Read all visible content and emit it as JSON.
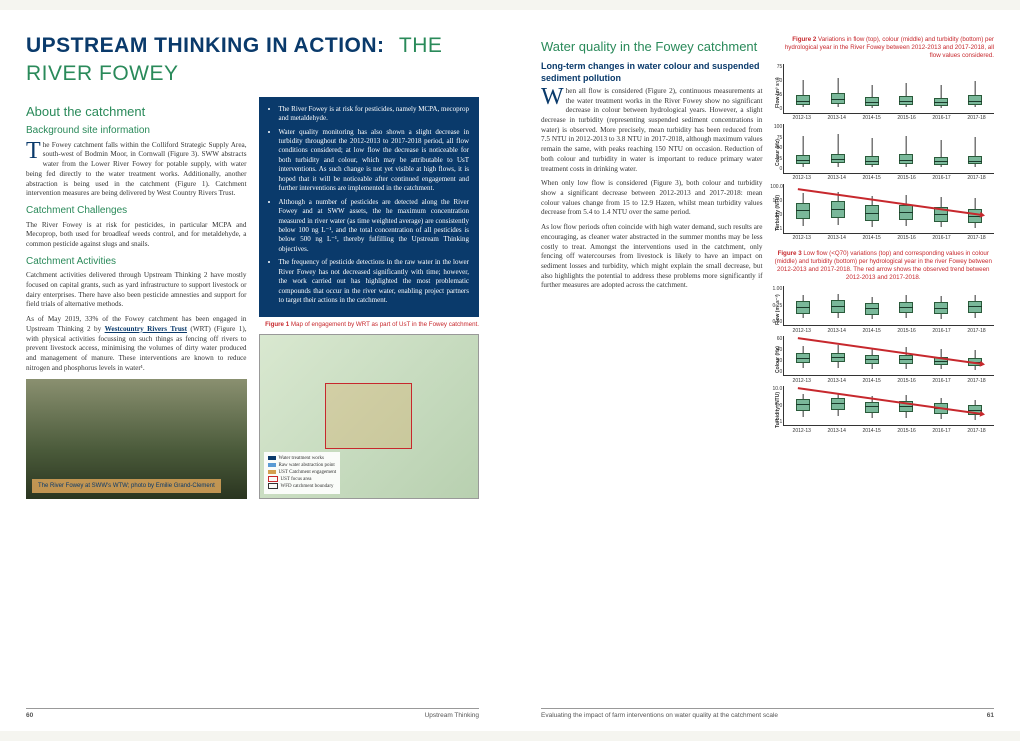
{
  "title_left": "UPSTREAM THINKING IN ACTION:",
  "title_right": "THE RIVER FOWEY",
  "left": {
    "h_about": "About the catchment",
    "h_bg": "Background site information",
    "p_bg": "The Fowey catchment falls within the Colliford Strategic Supply Area, south-west of Bodmin Moor, in Cornwall (Figure 3). SWW abstracts water from the Lower River Fowey for potable supply, with water being fed directly to the water treatment works. Additionally, another abstraction is being used in the catchment (Figure 1). Catchment intervention measures are being delivered by West Country Rivers Trust.",
    "h_chal": "Catchment Challenges",
    "p_chal": "The River Fowey is at risk for pesticides, in particular MCPA and Mecoprop, both used for broadleaf weeds control, and for metaldehyde, a common pesticide against slugs and snails.",
    "h_act": "Catchment Activities",
    "p_act1": "Catchment activities delivered through Upstream Thinking 2 have mostly focused on capital grants, such as yard infrastructure to support livestock or dairy enterprises. There have also been pesticide amnesties and support for field trials of alternative methods.",
    "p_act2": "As of May 2019, 33% of the Fowey catchment has been engaged in Upstream Thinking 2 by ",
    "link": "Westcountry Rivers Trust",
    "p_act3": " (WRT) (Figure 1), with physical activities focussing on such things as fencing off rivers to prevent livestock access, minimising the volumes of dirty water produced and management of manure. These interventions are known to reduce nitrogen and phosphorus levels in water¹.",
    "bullets": [
      "The River Fowey is at risk for pesticides, namely MCPA, mecoprop and metaldehyde.",
      "Water quality monitoring has also shown a slight decrease in turbidity throughout the 2012-2013 to 2017-2018 period, all flow conditions considered; at low flow the decrease is noticeable for both turbidity and colour, which may be attributable to UsT interventions. As such change is not yet visible at high flows, it is hoped that it will be noticeable after continued engagement and further interventions are implemented in the catchment.",
      "Although a number of pesticides are detected along the River Fowey and at SWW assets, the he maximum concentration measured in river water (as time weighted average) are consistently below 100 ng L⁻¹, and the total concentration of all pesticides is below 500 ng L⁻¹, thereby fulfilling the Upstream Thinking objectives.",
      "The frequency of pesticide detections in the raw water in the lower River Fowey has not decreased significantly with time; however, the work carried out has highlighted the most problematic compounds that occur in the river water, enabling project partners to target their actions in the catchment."
    ],
    "fig1_label": "Figure 1",
    "fig1_text": " Map of engagement by WRT as part of UsT in the Fowey catchment.",
    "map_legend": [
      "Water treatment works",
      "Raw water abstraction point",
      "UST Catchment engagement",
      "UST focus area",
      "WFD catchment boundary"
    ],
    "photo_cap": "The River Fowey at SWW's WTW; photo by Emilie Grand-Clement"
  },
  "right": {
    "h_wq": "Water quality in the Fowey catchment",
    "h_lt": "Long-term changes in water colour and suspended sediment pollution",
    "p1": "When all flow is considered (Figure 2), continuous measurements at the water treatment works in the River Fowey show no significant decrease in colour between hydrological years. However, a slight decrease in turbidity (representing suspended sediment concentrations in water) is observed. More precisely, mean turbidity has been reduced from 7.5 NTU in 2012-2013 to 3.8 NTU in 2017-2018, although maximum values remain the same, with peaks reaching 150 NTU on occasion. Reduction of both colour and turbidity in water is important to reduce primary water treatment costs in drinking water.",
    "p2": "When only low flow is considered (Figure 3), both colour and turbidity show a significant decrease between 2012-2013 and 2017-2018: mean colour values change from 15 to 12.9 Hazen, whilst mean turbidity values decrease from 5.4 to 1.4 NTU over the same period.",
    "p3": "As low flow periods often coincide with high water demand, such results are encouraging, as cleaner water abstracted in the summer months may be less costly to treat. Amongst the interventions used in the catchment, only fencing off watercourses from livestock is likely to have an impact on sediment losses and turbidity, which might explain the small decrease, but also highlights the potential to address these problems more significantly if further measures are adopted across the catchment.",
    "fig2_label": "Figure 2",
    "fig2_text": " Variations in flow (top), colour (middle) and turbidity (bottom) per hydrological year in the River Fowey between 2012-2013 and 2017-2018, all flow values considered.",
    "fig3_label": "Figure 3",
    "fig3_text": " Low flow (<Q70) variations (top) and corresponding values in colour (middle) and turbidity (bottom) per hydrological year in the river Fowey between 2012-2013 and 2017-2018. The red arrow shows the observed trend between 2012-2013 and 2017-2018."
  },
  "charts": {
    "x_labels": [
      "2012-13",
      "2013-14",
      "2014-15",
      "2015-16",
      "2016-17",
      "2017-18"
    ],
    "fig2": {
      "flow": {
        "ylabel": "Flow (m³ s⁻¹)",
        "yticks": [
          "75",
          "50",
          "25",
          "0"
        ],
        "boxes": [
          {
            "lo": 5,
            "q1": 10,
            "med": 18,
            "q3": 35,
            "hi": 70
          },
          {
            "lo": 5,
            "q1": 12,
            "med": 22,
            "q3": 40,
            "hi": 75
          },
          {
            "lo": 4,
            "q1": 8,
            "med": 15,
            "q3": 30,
            "hi": 60
          },
          {
            "lo": 5,
            "q1": 10,
            "med": 18,
            "q3": 32,
            "hi": 65
          },
          {
            "lo": 4,
            "q1": 9,
            "med": 16,
            "q3": 28,
            "hi": 58
          },
          {
            "lo": 5,
            "q1": 11,
            "med": 19,
            "q3": 34,
            "hi": 68
          }
        ]
      },
      "colour": {
        "ylabel": "Colour (Hz)",
        "yticks": [
          "100",
          "75",
          "50",
          "25",
          "0"
        ],
        "boxes": [
          {
            "lo": 5,
            "q1": 12,
            "med": 20,
            "q3": 35,
            "hi": 80
          },
          {
            "lo": 6,
            "q1": 14,
            "med": 22,
            "q3": 38,
            "hi": 85
          },
          {
            "lo": 5,
            "q1": 11,
            "med": 18,
            "q3": 32,
            "hi": 75
          },
          {
            "lo": 6,
            "q1": 13,
            "med": 21,
            "q3": 36,
            "hi": 82
          },
          {
            "lo": 5,
            "q1": 10,
            "med": 17,
            "q3": 30,
            "hi": 70
          },
          {
            "lo": 5,
            "q1": 12,
            "med": 19,
            "q3": 33,
            "hi": 78
          }
        ]
      },
      "turbidity": {
        "ylabel": "Turbidity (NTU)",
        "yticks": [
          "100.0",
          "10.0",
          "1.0",
          "0.1"
        ],
        "log": true,
        "arrow": true,
        "boxes": [
          {
            "lo": 8,
            "q1": 25,
            "med": 45,
            "q3": 65,
            "hi": 88
          },
          {
            "lo": 10,
            "q1": 28,
            "med": 48,
            "q3": 68,
            "hi": 90
          },
          {
            "lo": 6,
            "q1": 20,
            "med": 38,
            "q3": 58,
            "hi": 82
          },
          {
            "lo": 7,
            "q1": 22,
            "med": 40,
            "q3": 60,
            "hi": 84
          },
          {
            "lo": 5,
            "q1": 18,
            "med": 34,
            "q3": 54,
            "hi": 78
          },
          {
            "lo": 4,
            "q1": 15,
            "med": 30,
            "q3": 50,
            "hi": 75
          }
        ]
      }
    },
    "fig3": {
      "flow": {
        "ylabel": "Flow (m³ s⁻¹)",
        "yticks": [
          "1.00",
          "0.75",
          "0.50"
        ],
        "boxes": [
          {
            "lo": 10,
            "q1": 25,
            "med": 45,
            "q3": 65,
            "hi": 85
          },
          {
            "lo": 12,
            "q1": 28,
            "med": 48,
            "q3": 68,
            "hi": 88
          },
          {
            "lo": 8,
            "q1": 22,
            "med": 40,
            "q3": 60,
            "hi": 80
          },
          {
            "lo": 10,
            "q1": 26,
            "med": 44,
            "q3": 64,
            "hi": 84
          },
          {
            "lo": 9,
            "q1": 24,
            "med": 42,
            "q3": 62,
            "hi": 82
          },
          {
            "lo": 11,
            "q1": 27,
            "med": 46,
            "q3": 66,
            "hi": 86
          }
        ]
      },
      "colour": {
        "ylabel": "Colour (Hz)",
        "yticks": [
          "60",
          "40",
          "20",
          "0"
        ],
        "arrow": true,
        "boxes": [
          {
            "lo": 10,
            "q1": 28,
            "med": 42,
            "q3": 58,
            "hi": 82
          },
          {
            "lo": 12,
            "q1": 30,
            "med": 44,
            "q3": 60,
            "hi": 85
          },
          {
            "lo": 8,
            "q1": 24,
            "med": 36,
            "q3": 52,
            "hi": 76
          },
          {
            "lo": 9,
            "q1": 25,
            "med": 38,
            "q3": 54,
            "hi": 78
          },
          {
            "lo": 7,
            "q1": 20,
            "med": 32,
            "q3": 48,
            "hi": 72
          },
          {
            "lo": 6,
            "q1": 18,
            "med": 28,
            "q3": 44,
            "hi": 68
          }
        ]
      },
      "turbidity": {
        "ylabel": "Turbidity (NTU)",
        "yticks": [
          "10.0",
          "1.0",
          "0.1"
        ],
        "log": true,
        "arrow": true,
        "boxes": [
          {
            "lo": 15,
            "q1": 35,
            "med": 55,
            "q3": 72,
            "hi": 90
          },
          {
            "lo": 16,
            "q1": 36,
            "med": 56,
            "q3": 74,
            "hi": 92
          },
          {
            "lo": 10,
            "q1": 28,
            "med": 46,
            "q3": 64,
            "hi": 82
          },
          {
            "lo": 11,
            "q1": 30,
            "med": 48,
            "q3": 66,
            "hi": 84
          },
          {
            "lo": 8,
            "q1": 24,
            "med": 40,
            "q3": 58,
            "hi": 76
          },
          {
            "lo": 6,
            "q1": 20,
            "med": 34,
            "q3": 52,
            "hi": 70
          }
        ]
      }
    },
    "box_fill": "#7ab89a",
    "box_stroke": "#2a5a3a",
    "arrow_color": "#c7282d"
  },
  "footer": {
    "left_pn": "60",
    "left_txt": "Upstream Thinking",
    "right_txt": "Evaluating the impact of farm interventions on water quality at the catchment scale",
    "right_pn": "61"
  }
}
